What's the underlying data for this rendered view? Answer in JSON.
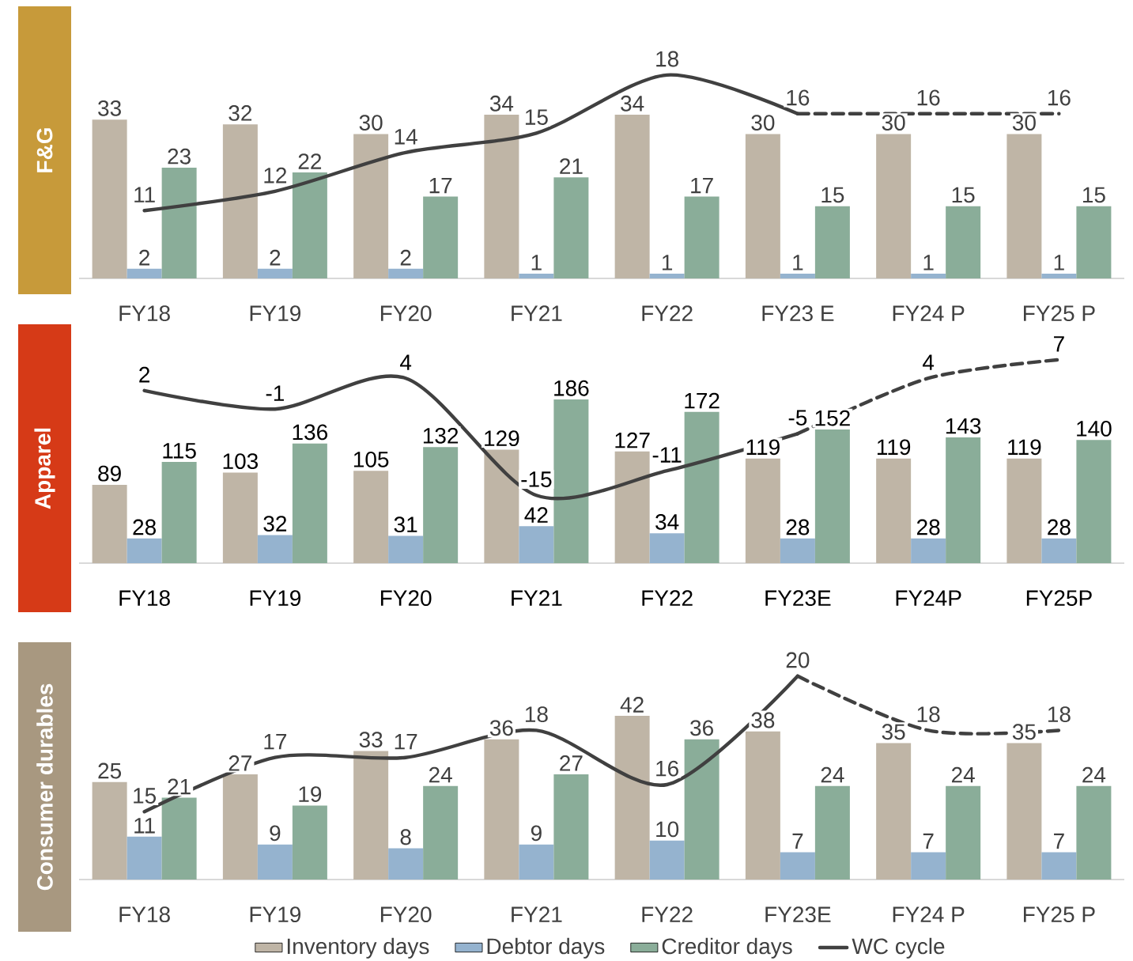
{
  "chart_data": [
    {
      "type": "bar",
      "title": "F&G",
      "categories": [
        "FY18",
        "FY19",
        "FY20",
        "FY21",
        "FY22",
        "FY23 E",
        "FY24 P",
        "FY25 P"
      ],
      "data_labels": true,
      "series": [
        {
          "color": "#bfb5a6",
          "values": [
            33,
            32,
            30,
            34,
            34,
            30,
            30,
            30
          ]
        },
        {
          "color": "#95b3cf",
          "values": [
            2,
            2,
            2,
            1,
            1,
            1,
            1,
            1
          ]
        },
        {
          "color": "#8aad99",
          "values": [
            23,
            22,
            17,
            21,
            17,
            15,
            15,
            15
          ]
        },
        {
          "type": "line",
          "axis": "y2",
          "color": "#404040",
          "line_style": "solid",
          "values": [
            11,
            12,
            14,
            15,
            18,
            16,
            null,
            null
          ]
        },
        {
          "type": "line",
          "axis": "y2",
          "color": "#404040",
          "line_style": "dashed",
          "values": [
            null,
            null,
            null,
            null,
            null,
            16,
            16,
            16
          ],
          "value_labels": [
            null,
            null,
            null,
            null,
            null,
            null,
            "16",
            "16"
          ]
        }
      ]
    },
    {
      "type": "bar",
      "title": "Apparel",
      "categories": [
        "FY18",
        "FY19",
        "FY20",
        "FY21",
        "FY22",
        "FY23E",
        "FY24P",
        "FY25P"
      ],
      "data_labels": true,
      "series": [
        {
          "color": "#bfb5a6",
          "values": [
            89,
            103,
            105,
            129,
            127,
            119,
            119,
            119
          ]
        },
        {
          "color": "#95b3cf",
          "values": [
            28,
            32,
            31,
            42,
            34,
            28,
            28,
            28
          ]
        },
        {
          "color": "#8aad99",
          "values": [
            115,
            136,
            132,
            186,
            172,
            152,
            143,
            140
          ]
        },
        {
          "type": "line",
          "axis": "y2",
          "color": "#404040",
          "line_style": "solid",
          "values": [
            2,
            -1,
            4,
            -15,
            -11,
            -5,
            null,
            null
          ]
        },
        {
          "type": "line",
          "axis": "y2",
          "color": "#404040",
          "line_style": "dashed",
          "values": [
            null,
            null,
            null,
            null,
            null,
            -5,
            4,
            7
          ],
          "value_labels": [
            null,
            null,
            null,
            null,
            null,
            null,
            "4",
            "7"
          ]
        }
      ]
    },
    {
      "type": "bar",
      "title": "Consumer durables",
      "categories": [
        "FY18",
        "FY19",
        "FY20",
        "FY21",
        "FY22",
        "FY23E",
        "FY24 P",
        "FY25 P"
      ],
      "data_labels": true,
      "legend": "bottom",
      "series": [
        {
          "name": "Inventory days",
          "color": "#bfb5a6",
          "values": [
            25,
            27,
            33,
            36,
            42,
            38,
            35,
            35
          ]
        },
        {
          "name": "Debtor days",
          "color": "#95b3cf",
          "values": [
            11,
            9,
            8,
            9,
            10,
            7,
            7,
            7
          ]
        },
        {
          "name": "Creditor days",
          "color": "#8aad99",
          "values": [
            21,
            19,
            24,
            27,
            36,
            24,
            24,
            24
          ]
        },
        {
          "name": "WC cycle",
          "type": "line",
          "axis": "y2",
          "color": "#404040",
          "line_style": "solid",
          "values": [
            15,
            17,
            17,
            18,
            16,
            20,
            null,
            null
          ]
        },
        {
          "type": "line",
          "axis": "y2",
          "color": "#404040",
          "line_style": "dashed",
          "values": [
            null,
            null,
            null,
            null,
            null,
            20,
            18,
            18
          ],
          "value_labels": [
            null,
            null,
            null,
            null,
            null,
            null,
            "18",
            "18"
          ]
        }
      ]
    }
  ]
}
